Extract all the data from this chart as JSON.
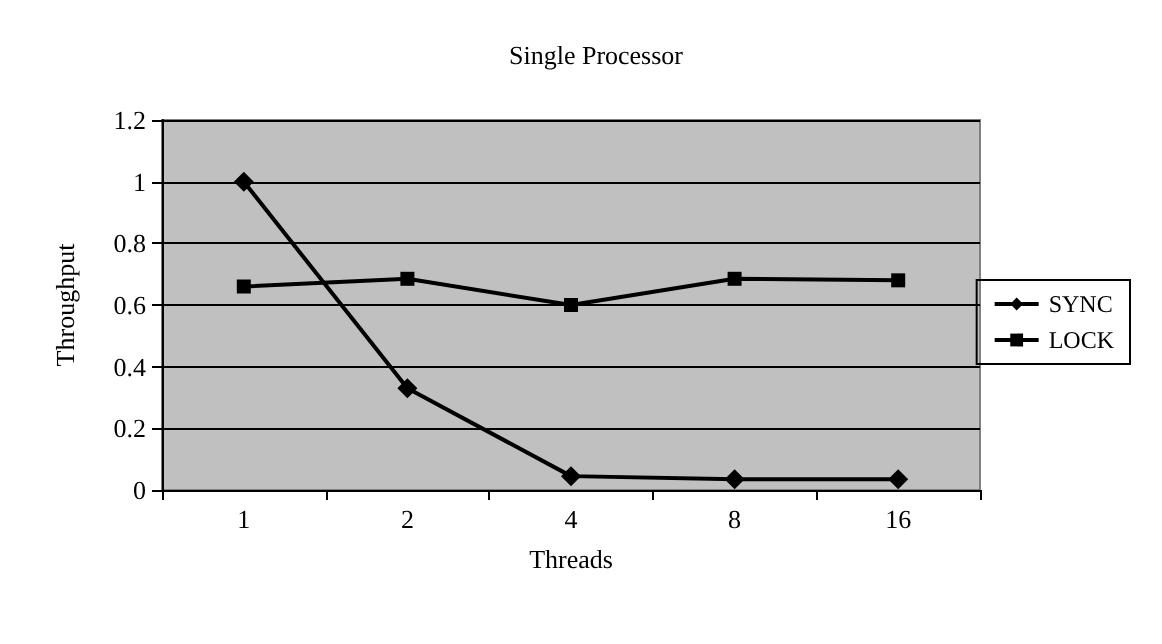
{
  "chart_data": {
    "type": "line",
    "title": "Single Processor",
    "xlabel": "Threads",
    "ylabel": "Throughput",
    "categories": [
      "1",
      "2",
      "4",
      "8",
      "16"
    ],
    "ylim": [
      0,
      1.2
    ],
    "yticks": [
      0,
      0.2,
      0.4,
      0.6,
      0.8,
      1,
      1.2
    ],
    "grid": "y",
    "legend": "right",
    "line_style": "solid",
    "series": [
      {
        "name": "SYNC",
        "color": "#000000",
        "marker": "diamond",
        "values": [
          1,
          0.33,
          0.045,
          0.035,
          0.035
        ]
      },
      {
        "name": "LOCK",
        "color": "#000000",
        "marker": "square",
        "values": [
          0.66,
          0.685,
          0.6,
          0.685,
          0.68
        ]
      }
    ]
  }
}
